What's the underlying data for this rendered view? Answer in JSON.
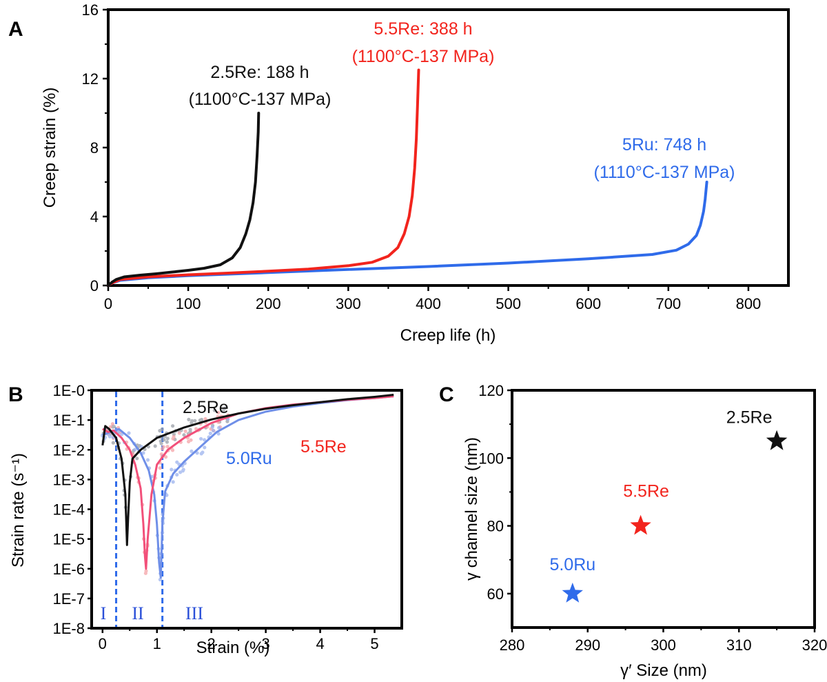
{
  "colors": {
    "black": "#111111",
    "red": "#f2241d",
    "blue": "#2f6bea",
    "axis": "#000000"
  },
  "chart_data": [
    {
      "panel": "A",
      "type": "line",
      "title": "",
      "xlabel": "Creep life (h)",
      "ylabel": "Creep strain (%)",
      "xlim": [
        0,
        850
      ],
      "ylim": [
        0,
        16
      ],
      "xticks": [
        0,
        100,
        200,
        300,
        400,
        500,
        600,
        700,
        800
      ],
      "yticks": [
        0,
        4,
        8,
        12,
        16
      ],
      "series": [
        {
          "name": "2.5Re",
          "color": "black",
          "label_line1": "2.5Re: 188 h",
          "label_line2": "(1100°C-137 MPa)",
          "x": [
            0,
            5,
            10,
            20,
            40,
            60,
            80,
            100,
            120,
            140,
            155,
            165,
            172,
            177,
            181,
            184,
            186,
            187.5,
            188
          ],
          "y": [
            0,
            0.2,
            0.35,
            0.5,
            0.6,
            0.68,
            0.78,
            0.88,
            1.0,
            1.2,
            1.6,
            2.2,
            3.0,
            3.8,
            4.8,
            6.0,
            7.5,
            8.9,
            10.0
          ]
        },
        {
          "name": "5.5Re",
          "color": "red",
          "label_line1": "5.5Re: 388 h",
          "label_line2": "(1100°C-137 MPa)",
          "x": [
            0,
            5,
            15,
            50,
            100,
            150,
            200,
            250,
            300,
            330,
            350,
            362,
            370,
            376,
            380,
            383,
            385,
            386.5,
            388
          ],
          "y": [
            0,
            0.15,
            0.35,
            0.5,
            0.62,
            0.72,
            0.83,
            0.95,
            1.15,
            1.35,
            1.7,
            2.2,
            3.0,
            4.0,
            5.2,
            6.8,
            8.5,
            10.4,
            12.5
          ]
        },
        {
          "name": "5Ru",
          "color": "blue",
          "label_line1": "5Ru: 748 h",
          "label_line2": "(1110°C-137 MPa)",
          "x": [
            0,
            5,
            15,
            50,
            100,
            200,
            300,
            400,
            500,
            600,
            680,
            710,
            725,
            735,
            740,
            744,
            746,
            748
          ],
          "y": [
            0,
            0.15,
            0.3,
            0.45,
            0.57,
            0.75,
            0.93,
            1.1,
            1.3,
            1.55,
            1.8,
            2.05,
            2.4,
            2.9,
            3.5,
            4.3,
            5.0,
            6.0
          ]
        }
      ]
    },
    {
      "panel": "B",
      "type": "line",
      "title": "",
      "xlabel": "Strain (%)",
      "ylabel": "Strain rate (s⁻¹)",
      "xlim": [
        -0.2,
        5.5
      ],
      "ylim_log10": [
        -8,
        0
      ],
      "xticks": [
        0,
        1,
        2,
        3,
        4,
        5
      ],
      "ytick_labels": [
        "1E-0",
        "1E-1",
        "1E-2",
        "1E-3",
        "1E-4",
        "1E-5",
        "1E-6",
        "1E-7",
        "1E-8"
      ],
      "dividers": [
        0.25,
        1.1
      ],
      "regions": [
        "I",
        "II",
        "III"
      ],
      "series": [
        {
          "name": "2.5Re",
          "color": "black",
          "x": [
            0,
            0.05,
            0.12,
            0.25,
            0.35,
            0.42,
            0.45,
            0.47,
            0.5,
            0.55,
            0.7,
            1.0,
            1.5,
            2.0,
            2.5,
            3.0,
            3.5,
            4.0,
            4.5,
            5.0,
            5.35
          ],
          "log10_y": [
            -1.85,
            -1.2,
            -1.3,
            -1.6,
            -2.3,
            -3.5,
            -5.2,
            -4.3,
            -3.1,
            -2.3,
            -2.0,
            -1.6,
            -1.25,
            -0.98,
            -0.78,
            -0.62,
            -0.5,
            -0.4,
            -0.3,
            -0.22,
            -0.15
          ]
        },
        {
          "name": "5.5Re",
          "color": "red",
          "x": [
            0,
            0.1,
            0.2,
            0.35,
            0.5,
            0.6,
            0.7,
            0.75,
            0.78,
            0.8,
            0.83,
            0.9,
            1.0,
            1.2,
            1.5,
            2.0,
            2.5,
            3.0,
            3.5,
            4.0,
            4.5,
            5.0,
            5.35
          ],
          "log10_y": [
            -1.3,
            -1.4,
            -1.35,
            -1.6,
            -2.0,
            -2.5,
            -3.3,
            -4.5,
            -5.6,
            -6.0,
            -5.0,
            -3.5,
            -2.5,
            -2.0,
            -1.6,
            -1.1,
            -0.78,
            -0.6,
            -0.48,
            -0.4,
            -0.32,
            -0.26,
            -0.2
          ]
        },
        {
          "name": "5.0Ru",
          "color": "blue",
          "x": [
            0,
            0.15,
            0.3,
            0.5,
            0.7,
            0.85,
            0.95,
            1.0,
            1.04,
            1.07,
            1.1,
            1.15,
            1.3,
            1.5,
            1.8,
            2.1,
            2.5,
            3.0,
            3.5,
            4.0,
            4.5,
            5.0,
            5.35
          ],
          "log10_y": [
            -1.5,
            -1.4,
            -1.3,
            -1.6,
            -2.1,
            -2.7,
            -3.5,
            -4.5,
            -5.8,
            -6.3,
            -4.5,
            -3.4,
            -2.8,
            -2.4,
            -1.9,
            -1.4,
            -1.0,
            -0.72,
            -0.55,
            -0.43,
            -0.33,
            -0.26,
            -0.2
          ]
        }
      ],
      "annotations": [
        "2.5Re",
        "5.5Re",
        "5.0Ru"
      ]
    },
    {
      "panel": "C",
      "type": "scatter",
      "title": "",
      "xlabel": "γ′ Size (nm)",
      "ylabel": "γ channel size (nm)",
      "xlim": [
        280,
        320
      ],
      "ylim": [
        50,
        120
      ],
      "xticks": [
        280,
        290,
        300,
        310,
        320
      ],
      "yticks": [
        60,
        80,
        100,
        120
      ],
      "points": [
        {
          "name": "2.5Re",
          "x": 315,
          "y": 105,
          "color": "black"
        },
        {
          "name": "5.5Re",
          "x": 297,
          "y": 80,
          "color": "red"
        },
        {
          "name": "5.0Ru",
          "x": 288,
          "y": 60,
          "color": "blue"
        }
      ]
    }
  ]
}
